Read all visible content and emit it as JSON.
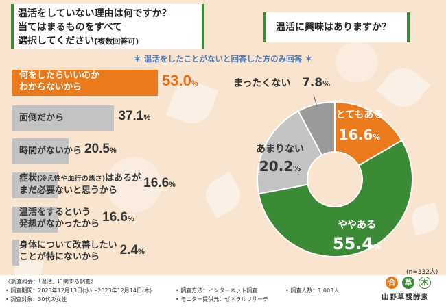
{
  "question1": {
    "line1": "温活をしていない理由は何ですか？",
    "line2": "当てはまるものをすべて",
    "line3": "選択してください",
    "line3_suffix": "(複数回答可)"
  },
  "question2": "温活に興味はありますか？",
  "note": "＊ 温活をしたことがないと回答した方のみ回答 ＊",
  "chart_data": [
    {
      "type": "bar",
      "orientation": "horizontal",
      "title": "温活をしていない理由は何ですか？当てはまるものをすべて選択してください(複数回答可)",
      "unit": "%",
      "categories": [
        {
          "line1": "何をしたらいいのか",
          "line2": "わからないから"
        },
        {
          "line1": "面倒だから"
        },
        {
          "line1": "時間がないから"
        },
        {
          "line1": "症状",
          "line1_sub": "(冷え性や血行の悪さ)",
          "line1_rest": "はあるが",
          "line2": "まだ必要ないと思うから"
        },
        {
          "line1": "温活をするという",
          "line2": "発想がなかったから"
        },
        {
          "line1": "身体について改善したい",
          "line2": "ことが特にないから"
        }
      ],
      "values": [
        53.0,
        37.1,
        20.5,
        16.6,
        16.6,
        2.4
      ],
      "value_labels": [
        "53.0",
        "37.1",
        "20.5",
        "16.6",
        "16.6",
        "2.4"
      ],
      "highlight_index": 0,
      "xlim": [
        0,
        100
      ]
    },
    {
      "type": "pie",
      "style": "donut",
      "title": "温活に興味はありますか？",
      "unit": "%",
      "slices": [
        {
          "label": "とてもある",
          "value": 16.6,
          "value_label": "16.6",
          "color": "#eb7a1c"
        },
        {
          "label": "ややある",
          "value": 55.4,
          "value_label": "55.4",
          "color": "#3a8a36"
        },
        {
          "label": "あまりない",
          "value": 20.2,
          "value_label": "20.2",
          "color": "#c3c3c3"
        },
        {
          "label": "まったくない",
          "value": 7.8,
          "value_label": "7.8",
          "color": "#9a9a9a"
        }
      ]
    }
  ],
  "sample_size": "(n=332人)",
  "footer": {
    "overview": "《調査概要：「温活」に関する調査》",
    "period": "• 調査期間：2023年12月13日(水)〜2023年12月14日(木)",
    "target": "• 調査対象：30代の女性",
    "method": "• 調査方法：インターネット調査",
    "provider": "• モニター提供元：ゼネラルリサーチ",
    "count": "• 調査人数：1,003人"
  },
  "logo": {
    "marks": [
      "合",
      "草",
      "木"
    ],
    "brand": "山野草醗酵素"
  },
  "colors": {
    "accent": "#eb7a1c",
    "green": "#3a8a36",
    "gray": "#c3c3c3",
    "dark_gray": "#9a9a9a"
  }
}
